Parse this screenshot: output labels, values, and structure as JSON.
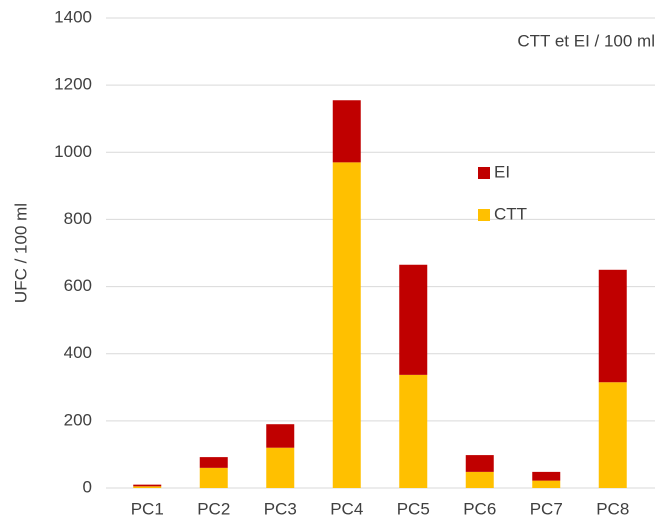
{
  "chart_data": {
    "type": "stacked_bar",
    "title": "CTT et EI / 100 ml",
    "y_label": "UFC / 100 ml",
    "categories": [
      "PC1",
      "PC2",
      "PC3",
      "PC4",
      "PC5",
      "PC6",
      "PC7",
      "PC8"
    ],
    "series": [
      {
        "name": "CTT",
        "color": "#ffc000",
        "values": [
          5,
          60,
          120,
          970,
          337,
          48,
          22,
          315
        ]
      },
      {
        "name": "EI",
        "color": "#c00000",
        "values": [
          5,
          32,
          70,
          185,
          328,
          50,
          26,
          335
        ]
      }
    ],
    "ylim": [
      0,
      1400
    ],
    "yticks": [
      0,
      200,
      400,
      600,
      800,
      1000,
      1200,
      1400
    ],
    "grid": true
  }
}
